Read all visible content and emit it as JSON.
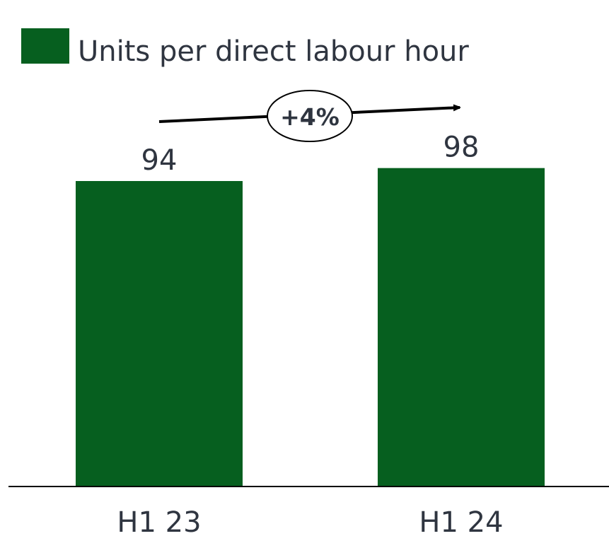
{
  "chart_data": {
    "type": "bar",
    "categories": [
      "H1 23",
      "H1 24"
    ],
    "series": [
      {
        "name": "Units per direct labour hour",
        "color": "#065f1f",
        "values": [
          94,
          98
        ]
      }
    ],
    "annotation": "+4%"
  }
}
